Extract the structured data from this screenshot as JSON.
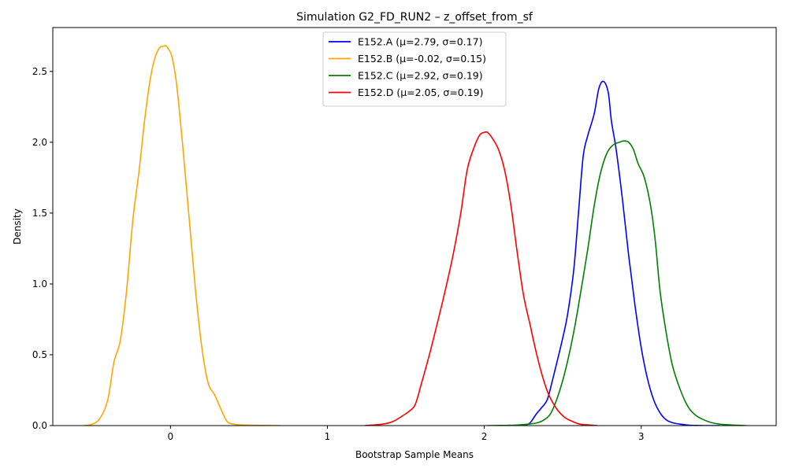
{
  "chart_data": {
    "type": "line",
    "title": "Simulation G2_FD_RUN2 – z_offset_from_sf",
    "xlabel": "Bootstrap Sample Means",
    "ylabel": "Density",
    "xlim": [
      -0.75,
      3.86
    ],
    "ylim": [
      0,
      2.81
    ],
    "xticks": [
      0,
      1,
      2,
      3
    ],
    "yticks": [
      0.0,
      0.5,
      1.0,
      1.5,
      2.0,
      2.5
    ],
    "xtick_labels": [
      "0",
      "1",
      "2",
      "3"
    ],
    "ytick_labels": [
      "0.0",
      "0.5",
      "1.0",
      "1.5",
      "2.0",
      "2.5"
    ],
    "grid": false,
    "legend_position": "top-center",
    "series": [
      {
        "name": "E152.A (μ=2.79, σ=0.17)",
        "color": "#0000ff",
        "x": [
          2.24,
          2.28,
          2.3,
          2.33,
          2.36,
          2.4,
          2.43,
          2.47,
          2.5,
          2.53,
          2.57,
          2.6,
          2.63,
          2.66,
          2.7,
          2.73,
          2.76,
          2.79,
          2.81,
          2.84,
          2.88,
          2.92,
          2.96,
          3.0,
          3.04,
          3.08,
          3.12,
          3.16,
          3.2,
          3.25,
          3.3,
          3.35,
          3.4,
          3.5
        ],
        "y": [
          0.0,
          0.01,
          0.03,
          0.08,
          0.12,
          0.18,
          0.3,
          0.48,
          0.62,
          0.78,
          1.1,
          1.5,
          1.9,
          2.05,
          2.2,
          2.38,
          2.43,
          2.35,
          2.15,
          1.95,
          1.6,
          1.2,
          0.85,
          0.55,
          0.33,
          0.18,
          0.09,
          0.04,
          0.02,
          0.01,
          0.003,
          0.001,
          0.0,
          0.0
        ]
      },
      {
        "name": "E152.B (μ=-0.02, σ=0.15)",
        "color": "#ffa500",
        "x": [
          -0.55,
          -0.5,
          -0.45,
          -0.4,
          -0.36,
          -0.32,
          -0.28,
          -0.24,
          -0.2,
          -0.16,
          -0.12,
          -0.08,
          -0.04,
          -0.02,
          0.01,
          0.04,
          0.08,
          0.12,
          0.16,
          0.2,
          0.24,
          0.28,
          0.32,
          0.36,
          0.4,
          0.45,
          0.5,
          0.55,
          0.6,
          0.7
        ],
        "y": [
          0.0,
          0.01,
          0.05,
          0.18,
          0.45,
          0.6,
          0.95,
          1.45,
          1.8,
          2.2,
          2.5,
          2.65,
          2.68,
          2.67,
          2.6,
          2.4,
          1.95,
          1.45,
          0.95,
          0.55,
          0.3,
          0.22,
          0.12,
          0.03,
          0.01,
          0.005,
          0.003,
          0.002,
          0.001,
          0.0
        ]
      },
      {
        "name": "E152.C (μ=2.92, σ=0.19)",
        "color": "#008000",
        "x": [
          2.02,
          2.1,
          2.2,
          2.28,
          2.34,
          2.38,
          2.42,
          2.46,
          2.5,
          2.54,
          2.58,
          2.62,
          2.66,
          2.7,
          2.74,
          2.78,
          2.82,
          2.86,
          2.89,
          2.92,
          2.95,
          2.98,
          3.02,
          3.06,
          3.09,
          3.12,
          3.16,
          3.2,
          3.25,
          3.3,
          3.35,
          3.4,
          3.45,
          3.5,
          3.58,
          3.67
        ],
        "y": [
          0.0,
          0.001,
          0.003,
          0.01,
          0.02,
          0.04,
          0.08,
          0.18,
          0.32,
          0.5,
          0.72,
          0.98,
          1.25,
          1.55,
          1.78,
          1.92,
          1.98,
          2.0,
          2.01,
          2.0,
          1.95,
          1.85,
          1.75,
          1.55,
          1.3,
          0.95,
          0.65,
          0.42,
          0.25,
          0.13,
          0.07,
          0.04,
          0.02,
          0.01,
          0.004,
          0.0
        ]
      },
      {
        "name": "E152.D (μ=2.05, σ=0.19)",
        "color": "#ff0000",
        "x": [
          1.24,
          1.35,
          1.42,
          1.48,
          1.52,
          1.56,
          1.6,
          1.65,
          1.7,
          1.75,
          1.8,
          1.85,
          1.89,
          1.93,
          1.97,
          2.0,
          2.02,
          2.05,
          2.09,
          2.13,
          2.17,
          2.21,
          2.25,
          2.29,
          2.33,
          2.37,
          2.41,
          2.46,
          2.51,
          2.56,
          2.61,
          2.66,
          2.72
        ],
        "y": [
          0.0,
          0.01,
          0.03,
          0.07,
          0.1,
          0.15,
          0.3,
          0.5,
          0.72,
          0.95,
          1.2,
          1.5,
          1.8,
          1.95,
          2.05,
          2.07,
          2.07,
          2.03,
          1.95,
          1.8,
          1.55,
          1.22,
          0.92,
          0.72,
          0.52,
          0.35,
          0.22,
          0.12,
          0.06,
          0.03,
          0.01,
          0.005,
          0.0
        ]
      }
    ]
  }
}
